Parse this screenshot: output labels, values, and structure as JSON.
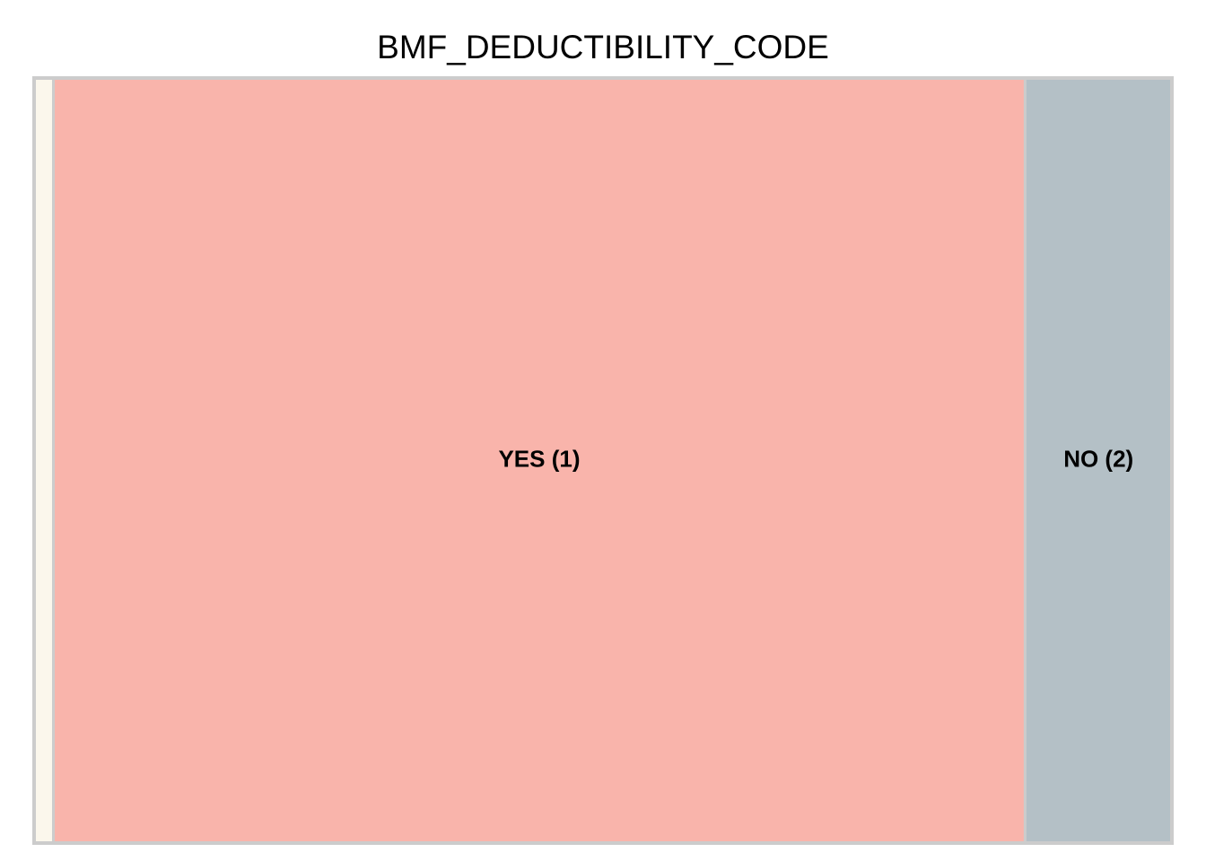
{
  "chart_data": {
    "type": "treemap",
    "title": "BMF_DEDUCTIBILITY_CODE",
    "tiles": [
      {
        "label": "",
        "value": 1.7,
        "color": "#FBF7EC"
      },
      {
        "label": "YES (1)",
        "value": 85.4,
        "color": "#F9B4AB"
      },
      {
        "label": "NO (2)",
        "value": 12.9,
        "color": "#B4C0C6"
      }
    ],
    "border_color": "#CCCCCC"
  }
}
